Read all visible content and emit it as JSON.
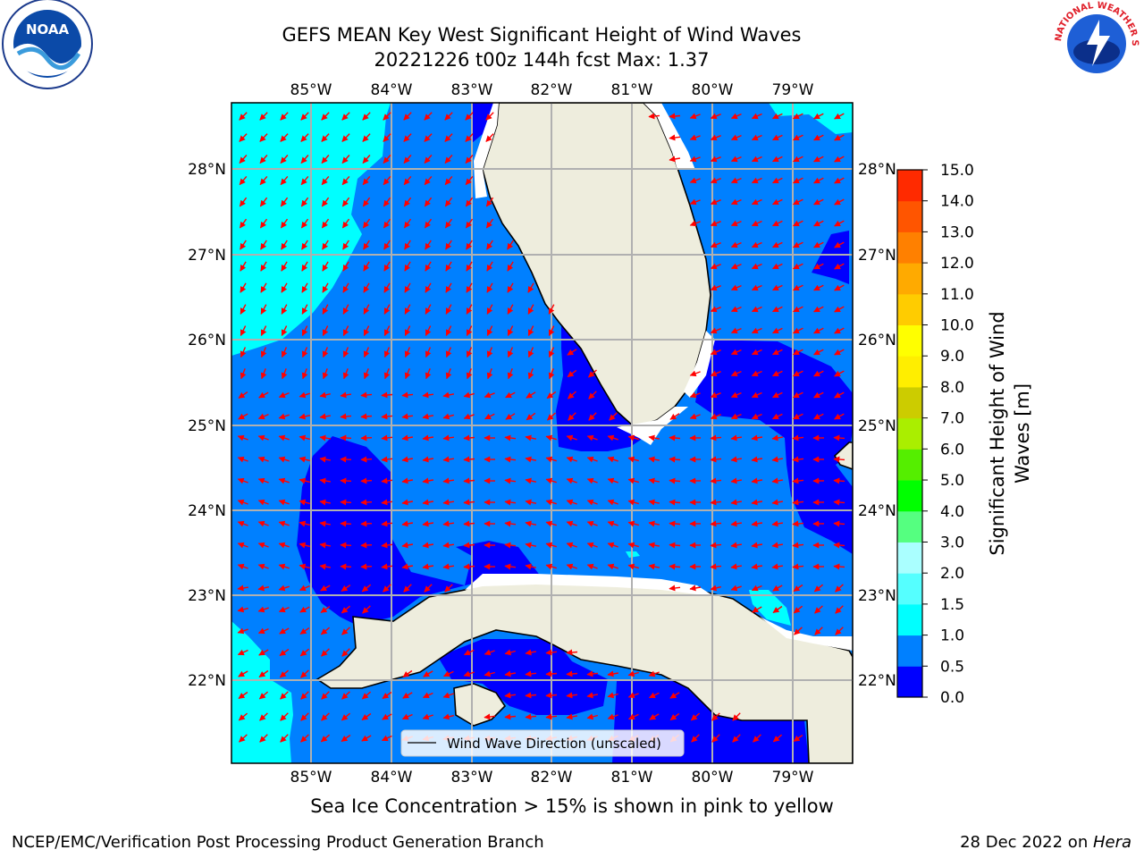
{
  "title": {
    "line1": "GEFS MEAN Key West Significant Height of Wind Waves",
    "line2": "20221226 t00z 144h fcst   Max: 1.37"
  },
  "map": {
    "lon_ticks": [
      "85°W",
      "84°W",
      "83°W",
      "82°W",
      "81°W",
      "80°W",
      "79°W"
    ],
    "lat_ticks": [
      "28°N",
      "27°N",
      "26°N",
      "25°N",
      "24°N",
      "23°N",
      "22°N"
    ],
    "legend_label": "Wind Wave Direction (unscaled)",
    "colors": {
      "land": "#eeeddd",
      "level_0_0_5": "#0000ff",
      "level_0_5_1_0": "#0080ff",
      "level_1_0_1_5": "#00ffff",
      "arrow": "#ff0000"
    }
  },
  "colorbar": {
    "label_line1": "Significant Height of Wind",
    "label_line2": "Waves [m]",
    "ticks": [
      "0.0",
      "0.5",
      "1.0",
      "1.5",
      "2.0",
      "3.0",
      "4.0",
      "5.0",
      "6.0",
      "7.0",
      "8.0",
      "9.0",
      "10.0",
      "11.0",
      "12.0",
      "13.0",
      "14.0",
      "15.0"
    ],
    "colors": [
      "#0000ff",
      "#0080ff",
      "#00ffff",
      "#55ffff",
      "#aaffff",
      "#55ff80",
      "#00ff00",
      "#55ee00",
      "#aaee00",
      "#cccc00",
      "#ffee00",
      "#ffff00",
      "#ffcc00",
      "#ffaa00",
      "#ff8000",
      "#ff5500",
      "#ff2a00"
    ]
  },
  "footnote": "Sea Ice Concentration > 15% is shown in pink to yellow",
  "footer": {
    "left": "NCEP/EMC/Verification Post Processing Product Generation Branch",
    "right_date": "28 Dec 2022 on ",
    "right_host": "Hera"
  },
  "logos": {
    "noaa_text": "NOAA",
    "nws_text": "NATIONAL WEATHER SERVICE"
  }
}
